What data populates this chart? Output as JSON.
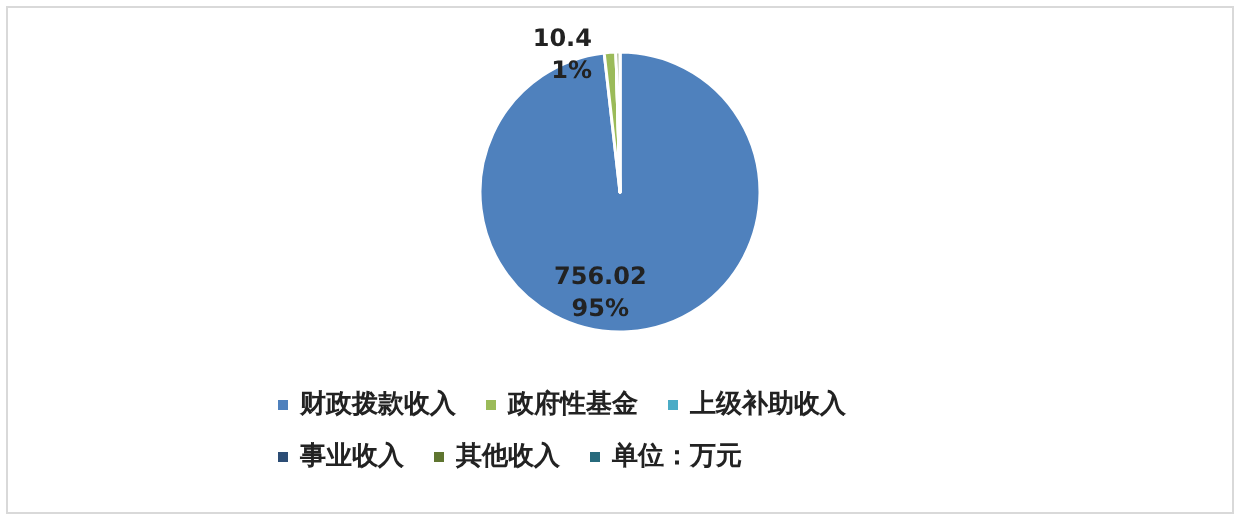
{
  "chart_data": {
    "type": "pie",
    "categories": [
      "财政拨款收入",
      "政府性基金",
      "上级补助收入",
      "事业收入",
      "其他收入",
      "单位：万元"
    ],
    "values": [
      756.02,
      10.4,
      0,
      0,
      3.5,
      0
    ],
    "colors": [
      "#4f81bd",
      "#9bbb59",
      "#4bacc6",
      "#2c4d75",
      "#5f7530",
      "#276a7c"
    ],
    "value_labels": [
      "756.02\n95%",
      "10.4\n1%",
      null,
      null,
      null,
      null
    ],
    "legend": "bottom"
  }
}
